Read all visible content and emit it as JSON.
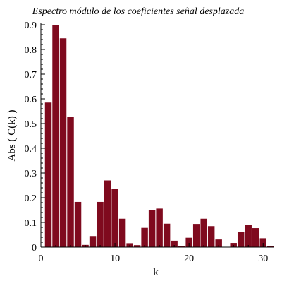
{
  "chart_data": {
    "type": "bar",
    "title": "Espectro módulo de los coeficientes señal desplazada",
    "xlabel": "k",
    "ylabel": "Abs ( C(k) )",
    "xlim": [
      0,
      31.5
    ],
    "ylim": [
      0,
      0.9
    ],
    "xticks": [
      0,
      10,
      20,
      30
    ],
    "yticks": [
      0,
      0.1,
      0.2,
      0.3,
      0.4,
      0.5,
      0.6,
      0.7,
      0.8,
      0.9
    ],
    "xtick_labels": [
      "0",
      "10",
      "20",
      "30"
    ],
    "ytick_labels": [
      "0",
      "0.1",
      "0.2",
      "0.3",
      "0.4",
      "0.5",
      "0.6",
      "0.7",
      "0.8",
      "0.9"
    ],
    "grid": false,
    "bar_color": "#7f0a1e",
    "bar_width": 0.9,
    "x": [
      1,
      2,
      3,
      4,
      5,
      6,
      7,
      8,
      9,
      10,
      11,
      12,
      13,
      14,
      15,
      16,
      17,
      18,
      19,
      20,
      21,
      22,
      23,
      24,
      25,
      26,
      27,
      28,
      29,
      30,
      31
    ],
    "values": [
      0.585,
      0.9,
      0.845,
      0.528,
      0.183,
      0.009,
      0.045,
      0.183,
      0.27,
      0.235,
      0.115,
      0.016,
      0.008,
      0.078,
      0.15,
      0.156,
      0.095,
      0.026,
      0.003,
      0.038,
      0.094,
      0.115,
      0.085,
      0.031,
      0.0,
      0.017,
      0.06,
      0.089,
      0.077,
      0.036,
      0.004
    ]
  }
}
